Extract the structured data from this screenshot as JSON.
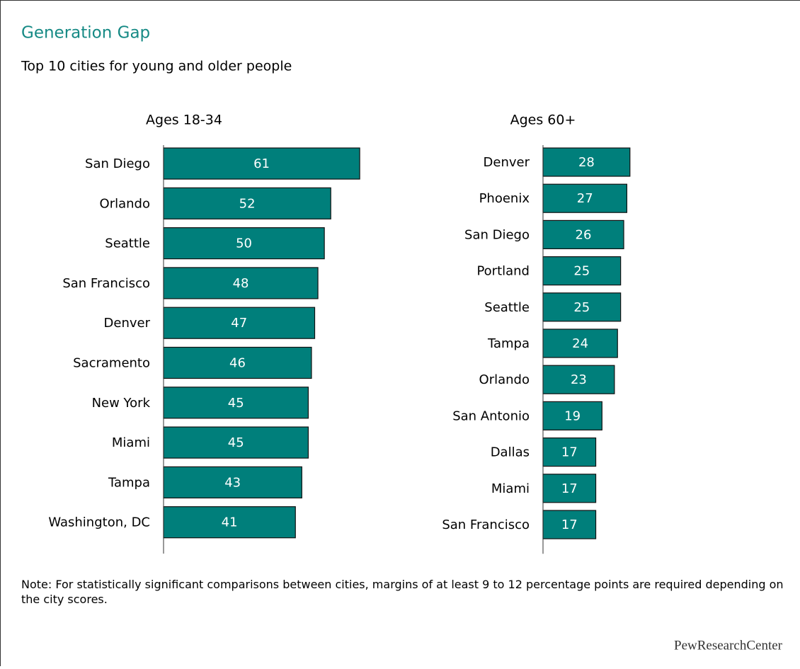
{
  "header": {
    "title": "Generation Gap",
    "subtitle": "Top 10 cities for young and older people"
  },
  "chart_data": [
    {
      "type": "hbar",
      "title": "Ages 18-34",
      "categories": [
        "San Diego",
        "Orlando",
        "Seattle",
        "San Francisco",
        "Denver",
        "Sacramento",
        "New York",
        "Miami",
        "Tampa",
        "Washington, DC"
      ],
      "values": [
        61,
        52,
        50,
        48,
        47,
        46,
        45,
        45,
        43,
        41
      ],
      "color": "#007f7b",
      "xlim": [
        0,
        70
      ]
    },
    {
      "type": "hbar",
      "title": "Ages 60+",
      "categories": [
        "Denver",
        "Phoenix",
        "San Diego",
        "Portland",
        "Seattle",
        "Tampa",
        "Orlando",
        "San Antonio",
        "Dallas",
        "Miami",
        "San Francisco"
      ],
      "values": [
        28,
        27,
        26,
        25,
        25,
        24,
        23,
        19,
        17,
        17,
        17
      ],
      "color": "#007f7b",
      "xlim": [
        0,
        70
      ]
    }
  ],
  "note": "Note: For statistically significant comparisons between cities, margins of at least 9 to 12 percentage points are required depending on the city scores.",
  "source": "PewResearchCenter"
}
